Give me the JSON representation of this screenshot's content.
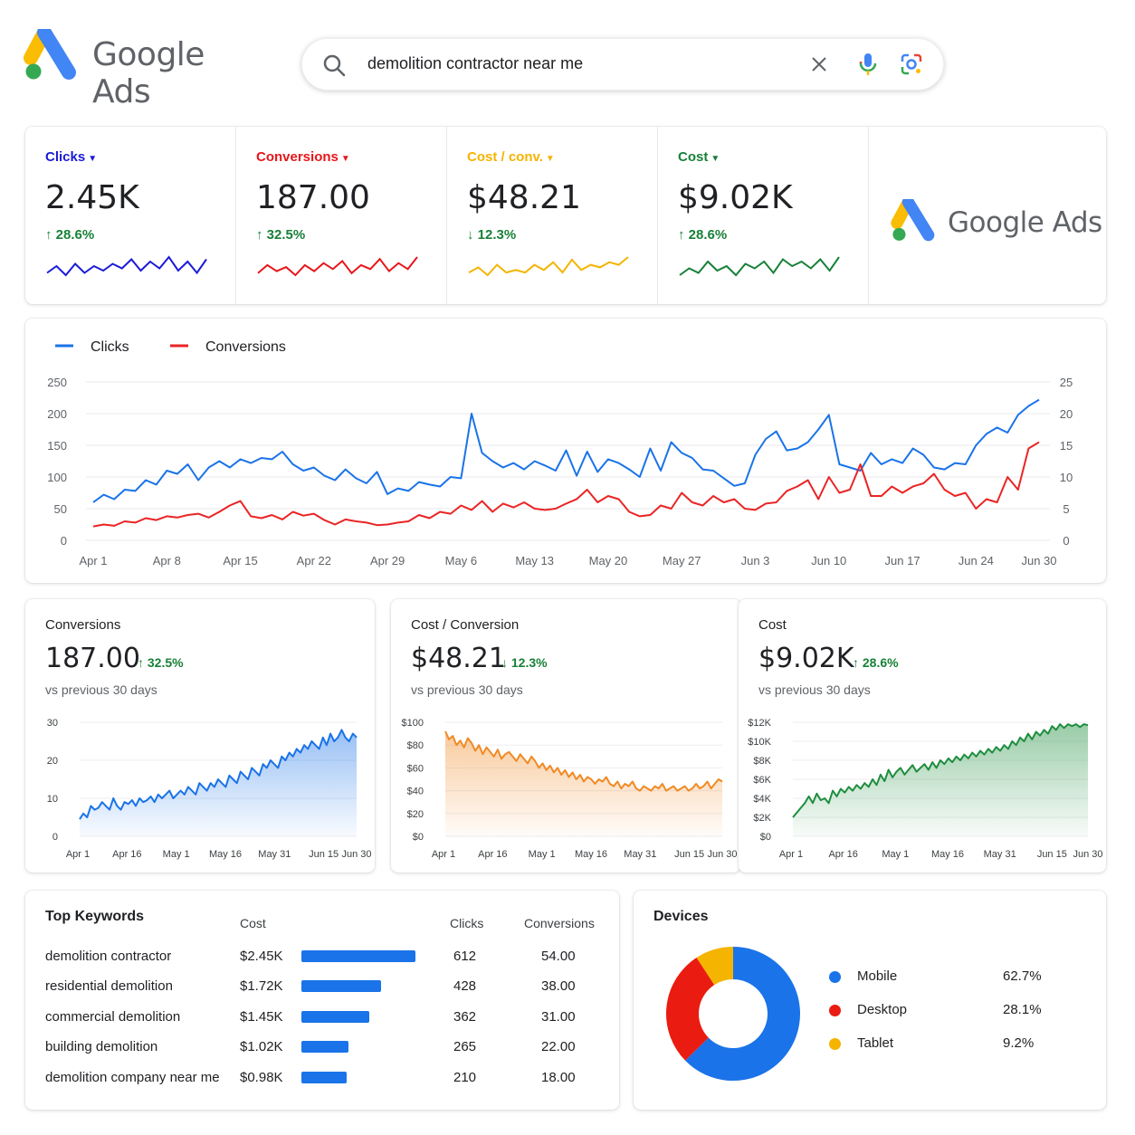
{
  "app": {
    "logo_text": "Google Ads"
  },
  "search": {
    "query": "demolition contractor near me"
  },
  "kpis": [
    {
      "label": "Clicks",
      "value": "2.45K",
      "delta": "28.6%",
      "direction": "up",
      "color": "#1a1ad8",
      "sparkline": [
        3,
        6,
        2,
        7,
        3,
        6,
        4,
        7,
        5,
        9,
        4,
        8,
        5,
        10,
        4,
        8,
        3,
        9
      ]
    },
    {
      "label": "Conversions",
      "value": "187.00",
      "delta": "32.5%",
      "direction": "up",
      "color": "#e8161b",
      "sparkline": [
        4,
        8,
        5,
        7,
        3,
        8,
        5,
        9,
        6,
        10,
        4,
        8,
        6,
        11,
        5,
        9,
        6,
        12
      ]
    },
    {
      "label": "Cost / conv.",
      "value": "$48.21",
      "delta": "12.3%",
      "direction": "down",
      "color": "#f4b400",
      "sparkline": [
        5,
        7,
        4,
        8,
        5,
        6,
        5,
        8,
        6,
        9,
        5,
        10,
        6,
        8,
        7,
        9,
        8,
        11
      ]
    },
    {
      "label": "Cost",
      "value": "$9.02K",
      "delta": "28.6%",
      "direction": "up",
      "color": "#188038",
      "sparkline": [
        3,
        6,
        4,
        9,
        5,
        7,
        3,
        8,
        6,
        9,
        4,
        10,
        7,
        9,
        6,
        10,
        5,
        11
      ]
    }
  ],
  "main_chart": {
    "legend": [
      {
        "name": "Clicks",
        "color": "#1a73e8"
      },
      {
        "name": "Conversions",
        "color": "#ea2424"
      }
    ],
    "x_ticks": [
      "Apr 1",
      "Apr 8",
      "Apr 15",
      "Apr 22",
      "Apr 29",
      "May 6",
      "May 13",
      "May 20",
      "May 27",
      "Jun 3",
      "Jun 10",
      "Jun 17",
      "Jun 24",
      "Jun 30"
    ],
    "y_left_ticks": [
      "250",
      "200",
      "150",
      "100",
      "50",
      "0"
    ],
    "y_right_ticks": [
      "25",
      "20",
      "15",
      "10",
      "5",
      "0"
    ]
  },
  "chart_data": [
    {
      "type": "line",
      "x": [
        "Apr 1",
        "Apr 2",
        "Apr 3",
        "Apr 4",
        "Apr 5",
        "Apr 6",
        "Apr 7",
        "Apr 8",
        "Apr 9",
        "Apr 10",
        "Apr 11",
        "Apr 12",
        "Apr 13",
        "Apr 14",
        "Apr 15",
        "Apr 16",
        "Apr 17",
        "Apr 18",
        "Apr 19",
        "Apr 20",
        "Apr 21",
        "Apr 22",
        "Apr 23",
        "Apr 24",
        "Apr 25",
        "Apr 26",
        "Apr 27",
        "Apr 28",
        "Apr 29",
        "Apr 30",
        "May 1",
        "May 2",
        "May 3",
        "May 4",
        "May 5",
        "May 6",
        "May 7",
        "May 8",
        "May 9",
        "May 10",
        "May 11",
        "May 12",
        "May 13",
        "May 14",
        "May 15",
        "May 16",
        "May 17",
        "May 18",
        "May 19",
        "May 20",
        "May 21",
        "May 22",
        "May 23",
        "May 24",
        "May 25",
        "May 26",
        "May 27",
        "May 28",
        "May 29",
        "May 30",
        "May 31",
        "Jun 1",
        "Jun 2",
        "Jun 3",
        "Jun 4",
        "Jun 5",
        "Jun 6",
        "Jun 7",
        "Jun 8",
        "Jun 9",
        "Jun 10",
        "Jun 11",
        "Jun 12",
        "Jun 13",
        "Jun 14",
        "Jun 15",
        "Jun 16",
        "Jun 17",
        "Jun 18",
        "Jun 19",
        "Jun 20",
        "Jun 21",
        "Jun 22",
        "Jun 23",
        "Jun 24",
        "Jun 25",
        "Jun 26",
        "Jun 27",
        "Jun 28",
        "Jun 29",
        "Jun 30"
      ],
      "series": [
        {
          "name": "Clicks",
          "axis": "left",
          "values": [
            60,
            72,
            65,
            80,
            78,
            95,
            88,
            110,
            105,
            120,
            95,
            115,
            125,
            115,
            128,
            122,
            130,
            128,
            140,
            120,
            110,
            115,
            102,
            95,
            112,
            98,
            90,
            108,
            73,
            82,
            78,
            92,
            88,
            85,
            100,
            98,
            200,
            138,
            125,
            115,
            122,
            112,
            125,
            118,
            110,
            142,
            102,
            140,
            108,
            128,
            122,
            112,
            100,
            145,
            110,
            155,
            138,
            130,
            112,
            110,
            98,
            86,
            90,
            135,
            160,
            172,
            142,
            145,
            155,
            175,
            198,
            120,
            115,
            110,
            138,
            120,
            128,
            122,
            145,
            135,
            115,
            112,
            122,
            120,
            150,
            168,
            178,
            170,
            198,
            212,
            222
          ]
        },
        {
          "name": "Conversions",
          "axis": "right",
          "values": [
            2.2,
            2.5,
            2.3,
            3.0,
            2.8,
            3.5,
            3.2,
            3.8,
            3.6,
            4.0,
            4.2,
            3.6,
            4.5,
            5.5,
            6.2,
            3.8,
            3.5,
            4.0,
            3.3,
            4.5,
            3.9,
            4.2,
            3.2,
            2.5,
            3.3,
            3.0,
            2.8,
            2.4,
            2.5,
            2.8,
            3.0,
            4.0,
            3.5,
            4.5,
            4.2,
            5.5,
            4.8,
            6.2,
            4.5,
            5.8,
            5.2,
            6.0,
            5.0,
            4.8,
            5.0,
            5.8,
            6.5,
            8.0,
            6.0,
            7.0,
            6.5,
            4.5,
            3.8,
            4.0,
            5.5,
            5.0,
            7.5,
            6.0,
            5.5,
            7.0,
            6.0,
            6.5,
            5.0,
            4.8,
            5.8,
            6.0,
            7.8,
            8.5,
            9.5,
            6.5,
            10.0,
            7.5,
            8.0,
            12.0,
            7.0,
            7.0,
            8.5,
            7.5,
            8.5,
            9.0,
            10.5,
            8.0,
            7.0,
            7.5,
            5.0,
            6.5,
            6.0,
            10.0,
            8.0,
            14.5,
            15.5
          ]
        }
      ],
      "ylim_left": [
        0,
        250
      ],
      "ylim_right": [
        0,
        25
      ]
    },
    {
      "type": "area",
      "title": "Conversions",
      "x_ticks": [
        "Apr 1",
        "Apr 16",
        "May 1",
        "May 16",
        "May 31",
        "Jun 15",
        "Jun 30"
      ],
      "y_ticks": [
        "30",
        "20",
        "10",
        "0"
      ],
      "ylim": [
        0,
        30
      ],
      "values": [
        4.5,
        6,
        5,
        8,
        7,
        7.5,
        9,
        8,
        7,
        10,
        8,
        7,
        9,
        8.5,
        9.5,
        8,
        10,
        9,
        9.5,
        10.5,
        9,
        11,
        10,
        11,
        12,
        10,
        11,
        12,
        11,
        13,
        12,
        11,
        14,
        13,
        12,
        14,
        13,
        15,
        14,
        13,
        16,
        15,
        14,
        17,
        16,
        15,
        18,
        17,
        16,
        19,
        18,
        20,
        19,
        18,
        21,
        20,
        22,
        21,
        23,
        22,
        24,
        23,
        25,
        24,
        23,
        26,
        24,
        27,
        25,
        26,
        28,
        26,
        25,
        27,
        26
      ]
    },
    {
      "type": "area",
      "title": "Cost / Conversion",
      "x_ticks": [
        "Apr 1",
        "Apr 16",
        "May 1",
        "May 16",
        "May 31",
        "Jun 15",
        "Jun 30"
      ],
      "y_ticks": [
        "$100",
        "$80",
        "$60",
        "$40",
        "$20",
        "$0"
      ],
      "ylim": [
        0,
        100
      ],
      "values": [
        92,
        85,
        88,
        80,
        84,
        78,
        86,
        82,
        75,
        80,
        72,
        78,
        74,
        70,
        76,
        68,
        72,
        74,
        70,
        66,
        72,
        68,
        64,
        70,
        66,
        60,
        64,
        58,
        62,
        56,
        60,
        54,
        58,
        52,
        56,
        50,
        54,
        48,
        52,
        50,
        46,
        50,
        48,
        52,
        46,
        44,
        48,
        42,
        46,
        44,
        48,
        42,
        40,
        44,
        42,
        40,
        44,
        42,
        46,
        40,
        42,
        44,
        40,
        42,
        44,
        40,
        42,
        46,
        42,
        44,
        48,
        42,
        46,
        50,
        48
      ]
    },
    {
      "type": "area",
      "title": "Cost",
      "x_ticks": [
        "Apr 1",
        "Apr 16",
        "May 1",
        "May 16",
        "May 31",
        "Jun 15",
        "Jun 30"
      ],
      "y_ticks": [
        "$12K",
        "$10K",
        "$8K",
        "$6K",
        "$4K",
        "$2K",
        "$0"
      ],
      "ylim": [
        0,
        12000
      ],
      "values": [
        2000,
        2500,
        3000,
        3500,
        4200,
        3500,
        4500,
        3800,
        4000,
        3500,
        4800,
        4200,
        5000,
        4600,
        5200,
        4800,
        5400,
        5000,
        5600,
        5200,
        6000,
        5400,
        6500,
        5800,
        7000,
        6200,
        6800,
        7200,
        6500,
        7000,
        7500,
        6800,
        7200,
        7600,
        7000,
        7800,
        7200,
        8000,
        7600,
        8200,
        7800,
        8400,
        8000,
        8600,
        8200,
        8800,
        8400,
        9000,
        8600,
        9200,
        8800,
        9400,
        9000,
        9600,
        9200,
        10000,
        9600,
        10400,
        10000,
        10800,
        10200,
        11000,
        10600,
        11200,
        10800,
        11600,
        11200,
        11800,
        11400,
        11800,
        11600,
        11800,
        11500,
        11800,
        11700
      ]
    },
    {
      "type": "pie",
      "title": "Devices",
      "categories": [
        "Mobile",
        "Desktop",
        "Tablet"
      ],
      "values": [
        62.7,
        28.1,
        9.2
      ],
      "colors": [
        "#1a73e8",
        "#ea1b10",
        "#f4b400"
      ]
    }
  ],
  "small_charts": [
    {
      "title": "Conversions",
      "value": "187.00",
      "delta": "32.5%",
      "direction": "up",
      "sub": "vs previous 30 days",
      "color": "#1a73e8"
    },
    {
      "title": "Cost / Conversion",
      "value": "$48.21",
      "delta": "12.3%",
      "direction": "down",
      "sub": "vs previous 30 days",
      "color": "#f08a24"
    },
    {
      "title": "Cost",
      "value": "$9.02K",
      "delta": "28.6%",
      "direction": "up",
      "sub": "vs previous 30 days",
      "color": "#1e8e3e"
    }
  ],
  "keywords": {
    "title": "Top Keywords",
    "headers": {
      "cost": "Cost",
      "clicks": "Clicks",
      "conversions": "Conversions"
    },
    "rows": [
      {
        "keyword": "demolition contractor",
        "cost": "$2.45K",
        "cost_value": 2450,
        "clicks": "612",
        "conversions": "54.00"
      },
      {
        "keyword": "residential demolition",
        "cost": "$1.72K",
        "cost_value": 1720,
        "clicks": "428",
        "conversions": "38.00"
      },
      {
        "keyword": "commercial demolition",
        "cost": "$1.45K",
        "cost_value": 1450,
        "clicks": "362",
        "conversions": "31.00"
      },
      {
        "keyword": "building demolition",
        "cost": "$1.02K",
        "cost_value": 1020,
        "clicks": "265",
        "conversions": "22.00"
      },
      {
        "keyword": "demolition company near me",
        "cost": "$0.98K",
        "cost_value": 980,
        "clicks": "210",
        "conversions": "18.00"
      }
    ]
  },
  "devices": {
    "title": "Devices",
    "items": [
      {
        "name": "Mobile",
        "percent": "62.7%",
        "color": "#1a73e8"
      },
      {
        "name": "Desktop",
        "percent": "28.1%",
        "color": "#ea1b10"
      },
      {
        "name": "Tablet",
        "percent": "9.2%",
        "color": "#f4b400"
      }
    ]
  }
}
